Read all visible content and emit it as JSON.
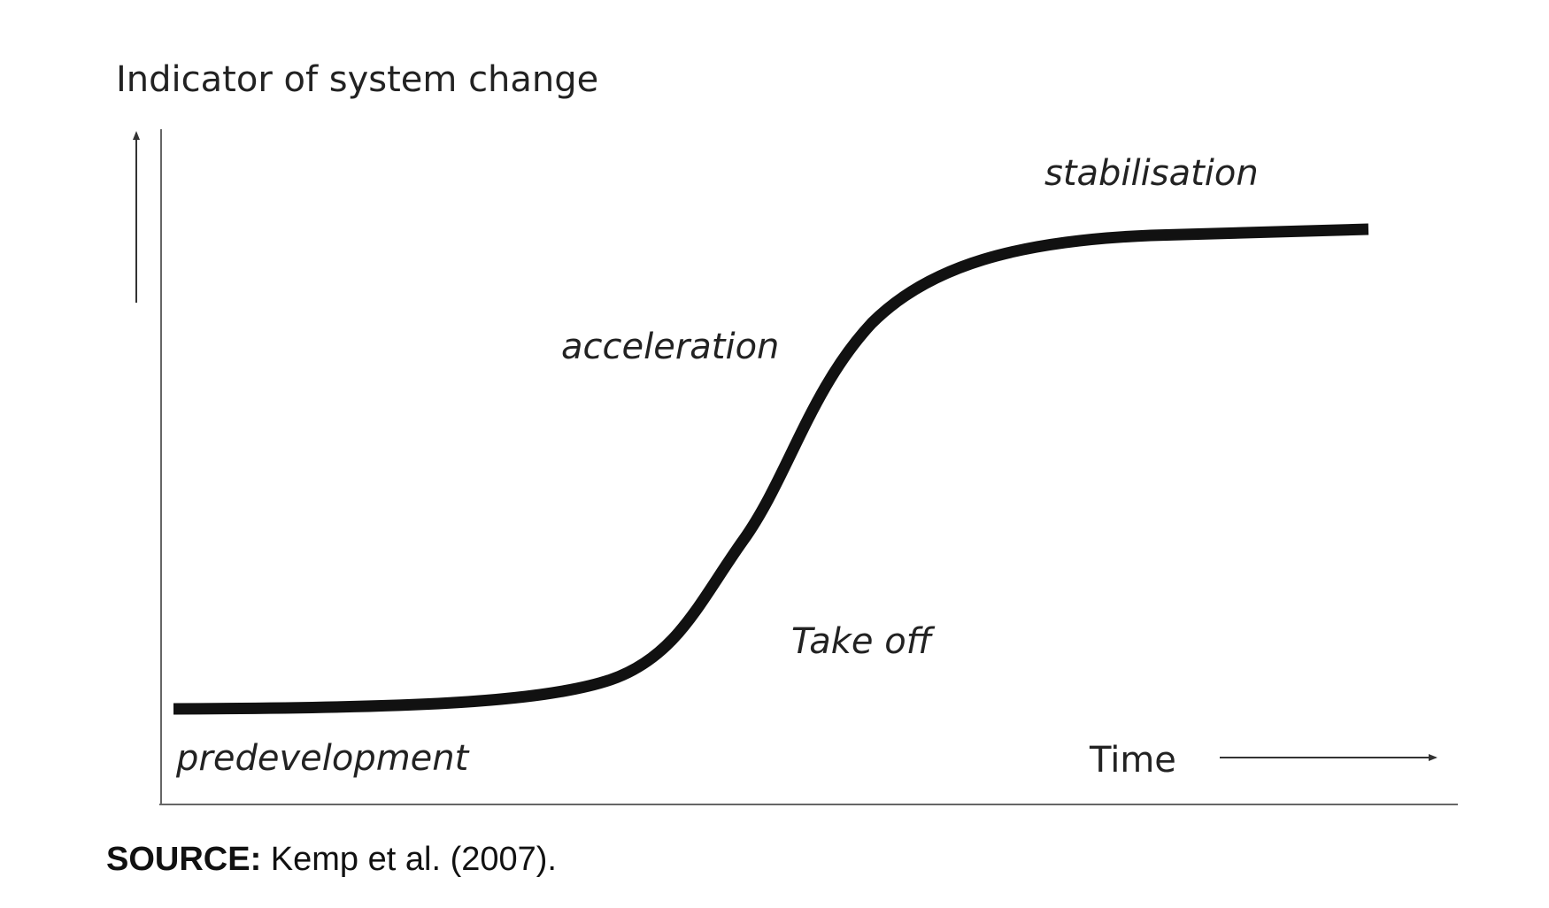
{
  "axis_label": "Indicator of system change",
  "x_label": "Time",
  "stages": [
    "predevelopment",
    "Take off",
    "acceleration",
    "stabilisation"
  ],
  "source": {
    "label": "SOURCE:",
    "text": "Kemp et al. (2007)."
  }
}
